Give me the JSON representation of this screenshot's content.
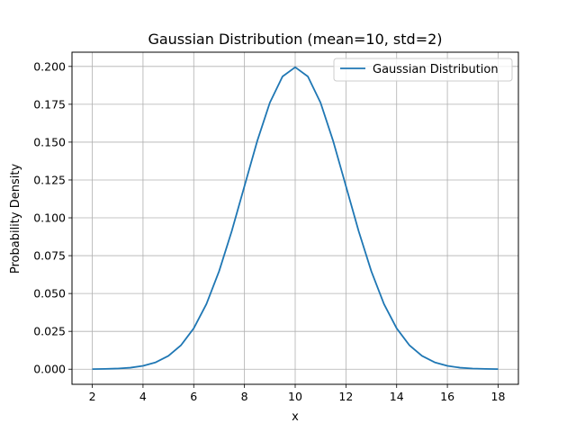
{
  "chart_data": {
    "type": "line",
    "title": "Gaussian Distribution (mean=10, std=2)",
    "xlabel": "x",
    "ylabel": "Probability Density",
    "xlim": [
      1.2,
      18.8
    ],
    "ylim": [
      -0.00997,
      0.2094
    ],
    "x_ticks": [
      2,
      4,
      6,
      8,
      10,
      12,
      14,
      16,
      18
    ],
    "x_tick_labels": [
      "2",
      "4",
      "6",
      "8",
      "10",
      "12",
      "14",
      "16",
      "18"
    ],
    "y_ticks": [
      0.0,
      0.025,
      0.05,
      0.075,
      0.1,
      0.125,
      0.15,
      0.175,
      0.2
    ],
    "y_tick_labels": [
      "0.000",
      "0.025",
      "0.050",
      "0.075",
      "0.100",
      "0.125",
      "0.150",
      "0.175",
      "0.200"
    ],
    "grid": true,
    "legend_position": "top-right",
    "series": [
      {
        "name": "Gaussian Distribution",
        "color": "#1f77b4",
        "x": [
          2,
          2.5,
          3,
          3.5,
          4,
          4.5,
          5,
          5.5,
          6,
          6.5,
          7,
          7.5,
          8,
          8.5,
          9,
          9.5,
          10,
          10.5,
          11,
          11.5,
          12,
          12.5,
          13,
          13.5,
          14,
          14.5,
          15,
          15.5,
          16,
          16.5,
          17,
          17.5,
          18
        ],
        "y": [
          7e-05,
          0.00023,
          0.00044,
          0.00099,
          0.00222,
          0.00453,
          0.00876,
          0.01588,
          0.027,
          0.04307,
          0.06476,
          0.09132,
          0.121,
          0.15057,
          0.17603,
          0.19333,
          0.19947,
          0.19333,
          0.17603,
          0.15057,
          0.121,
          0.09132,
          0.06476,
          0.04307,
          0.027,
          0.01588,
          0.00876,
          0.00453,
          0.00222,
          0.00099,
          0.00044,
          0.00023,
          7e-05
        ]
      }
    ]
  }
}
